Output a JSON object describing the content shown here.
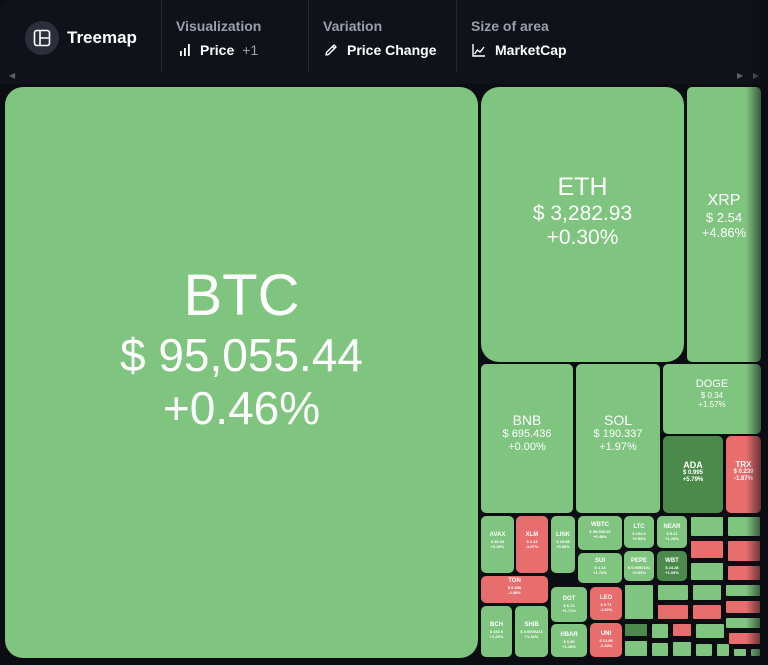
{
  "app": {
    "title": "Treemap",
    "icon": "layout-grid-icon"
  },
  "toolbar": {
    "visualization": {
      "title": "Visualization",
      "value": "Price",
      "extra": "+1",
      "icon": "bar-chart-icon"
    },
    "variation": {
      "title": "Variation",
      "value": "Price Change",
      "icon": "pencil-icon"
    },
    "size": {
      "title": "Size of area",
      "value": "MarketCap",
      "icon": "area-chart-icon"
    }
  },
  "colors": {
    "up": "#7fc47f",
    "strong_up": "#4c8a4c",
    "down": "#e86d6d",
    "bg": "#0b0d12"
  },
  "tiles": {
    "btc": {
      "symbol": "BTC",
      "price": "$ 95,055.44",
      "change": "+0.46%"
    },
    "eth": {
      "symbol": "ETH",
      "price": "$ 3,282.93",
      "change": "+0.30%"
    },
    "xrp": {
      "symbol": "XRP",
      "price": "$ 2.54",
      "change": "+4.86%"
    },
    "bnb": {
      "symbol": "BNB",
      "price": "$ 695.436",
      "change": "+0.00%"
    },
    "sol": {
      "symbol": "SOL",
      "price": "$ 190.337",
      "change": "+1.97%"
    },
    "doge": {
      "symbol": "DOGE",
      "price": "$ 0.34",
      "change": "+1.57%"
    },
    "ada": {
      "symbol": "ADA",
      "price": "$ 0.995",
      "change": "+5.79%"
    },
    "trx": {
      "symbol": "TRX",
      "price": "$ 0.239",
      "change": "-1.87%"
    },
    "avax": {
      "symbol": "AVAX",
      "price": "$ 36.04",
      "change": "+0.45%"
    },
    "xlm": {
      "symbol": "XLM",
      "price": "$ 0.43",
      "change": "-3.07%"
    },
    "link": {
      "symbol": "LINK",
      "price": "$ 20.68",
      "change": "+0.66%"
    },
    "wbtc": {
      "symbol": "WBTC",
      "price": "$ 95,030.00",
      "change": "+0.45%"
    },
    "ton": {
      "symbol": "TON",
      "price": "$ 5.386",
      "change": "-2.95%"
    },
    "sui": {
      "symbol": "SUI",
      "price": "$ 4.14",
      "change": "+1.72%"
    },
    "shib": {
      "symbol": "SHIB",
      "price": "$ 0.0000221",
      "change": "+1.32%"
    },
    "dot": {
      "symbol": "DOT",
      "price": "$ 6.72",
      "change": "+1.71%"
    },
    "hbar": {
      "symbol": "HBAR",
      "price": "$ 0.30",
      "change": "+1.18%"
    },
    "bch": {
      "symbol": "BCH",
      "price": "$ 452.9",
      "change": "+1.23%"
    },
    "leo": {
      "symbol": "LEO",
      "price": "$ 9.71",
      "change": "-1.62%"
    },
    "uni": {
      "symbol": "UNI",
      "price": "$ 13.95",
      "change": "-2.34%"
    },
    "ltc": {
      "symbol": "LTC",
      "price": "$ 103.4",
      "change": "+0.53%"
    },
    "pepe": {
      "symbol": "PEPE",
      "price": "$ 0.0000191",
      "change": "+0.93%"
    },
    "near": {
      "symbol": "NEAR",
      "price": "$ 5.21",
      "change": "+1.24%"
    },
    "wbt": {
      "symbol": "WBT",
      "price": "$ 24.38",
      "change": "+1.03%"
    }
  }
}
